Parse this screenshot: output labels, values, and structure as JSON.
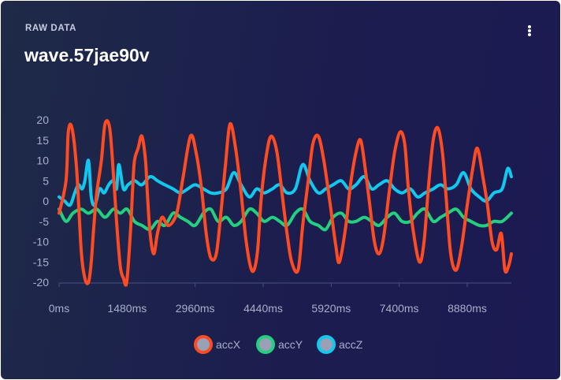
{
  "card": {
    "section_label": "RAW DATA",
    "title": "wave.57jae90v",
    "menu_icon": "vertical-dots-icon"
  },
  "chart_data": {
    "type": "line",
    "title": "",
    "xlabel": "",
    "ylabel": "",
    "x_unit": "ms",
    "xlim": [
      0,
      9840
    ],
    "ylim": [
      -20,
      20
    ],
    "x_ticks": [
      0,
      1480,
      2960,
      4440,
      5920,
      7400,
      8880
    ],
    "x_tick_labels": [
      "0ms",
      "1480ms",
      "2960ms",
      "4440ms",
      "5920ms",
      "7400ms",
      "8880ms"
    ],
    "y_ticks": [
      20,
      15,
      10,
      5,
      0,
      -5,
      -10,
      -15,
      -20
    ],
    "y_tick_labels": [
      "20",
      "15",
      "10",
      "5",
      "0",
      "-5",
      "-10",
      "-15",
      "-20"
    ],
    "grid": false,
    "legend_position": "bottom-center",
    "series": [
      {
        "name": "accX",
        "color": "#ff4b22",
        "x": [
          0,
          150,
          200,
          280,
          380,
          480,
          560,
          640,
          700,
          750,
          820,
          920,
          1000,
          1100,
          1180,
          1250,
          1330,
          1400,
          1470,
          1550,
          1600,
          1640,
          1720,
          1800,
          1880,
          1920,
          1980,
          2060,
          2140,
          2240,
          2360,
          2480,
          2580,
          2700,
          2860,
          2980,
          3100,
          3200,
          3300,
          3420,
          3520,
          3620,
          3720,
          3840,
          3960,
          4060,
          4160,
          4240,
          4320,
          4400,
          4520,
          4620,
          4740,
          4860,
          4960,
          5060,
          5200,
          5300,
          5420,
          5520,
          5640,
          5760,
          5900,
          6020,
          6100,
          6240,
          6340,
          6460,
          6560,
          6660,
          6760,
          6860,
          6960,
          7060,
          7180,
          7300,
          7420,
          7520,
          7600,
          7700,
          7840,
          7940,
          8040,
          8140,
          8240,
          8340,
          8420,
          8520,
          8640,
          8760,
          8880,
          9000,
          9100,
          9220,
          9320,
          9420,
          9520,
          9620,
          9700,
          9780,
          9840
        ],
        "values": [
          -3,
          5,
          17,
          18,
          8,
          -12,
          -19,
          -20,
          -15,
          -7,
          2,
          10,
          19,
          18,
          7,
          -5,
          -16,
          -19,
          -20,
          -8,
          3,
          10,
          13,
          16,
          10,
          2,
          -8,
          -13,
          -8,
          -4,
          -6,
          -5,
          -2,
          6,
          16,
          12,
          3,
          -8,
          -14,
          -13,
          -3,
          9,
          19,
          13,
          2,
          -9,
          -16,
          -17,
          -12,
          1,
          12,
          16,
          12,
          1,
          -8,
          -15,
          -17,
          -6,
          5,
          14,
          16,
          10,
          -1,
          -11,
          -15,
          -6,
          4,
          12,
          15,
          8,
          -1,
          -10,
          -13,
          -9,
          2,
          12,
          17,
          14,
          3,
          -7,
          -15,
          -10,
          4,
          15,
          18,
          12,
          1,
          -13,
          -17,
          -11,
          -1,
          8,
          13,
          6,
          -1,
          -10,
          -12,
          -8,
          -17,
          -16,
          -13
        ]
      },
      {
        "name": "accY",
        "color": "#22d07f",
        "x": [
          0,
          150,
          300,
          480,
          640,
          820,
          1000,
          1180,
          1330,
          1480,
          1640,
          1800,
          1980,
          2140,
          2300,
          2480,
          2640,
          2800,
          2960,
          3140,
          3300,
          3460,
          3640,
          3800,
          3960,
          4140,
          4300,
          4460,
          4640,
          4800,
          4960,
          5140,
          5300,
          5460,
          5640,
          5800,
          5960,
          6140,
          6300,
          6460,
          6640,
          6800,
          6960,
          7140,
          7300,
          7460,
          7640,
          7800,
          7960,
          8140,
          8300,
          8460,
          8640,
          8800,
          8960,
          9140,
          9300,
          9460,
          9640,
          9840
        ],
        "values": [
          -2,
          -5,
          -3,
          -2,
          -3,
          -2,
          -4,
          -2,
          -3,
          -2,
          -5,
          -6,
          -7,
          -5,
          -6,
          -3,
          -4,
          -5,
          -6,
          -3,
          -2,
          -5,
          -4,
          -6,
          -5,
          -2,
          -3,
          -5,
          -4,
          -5,
          -6,
          -3,
          -2,
          -5,
          -6,
          -7,
          -4,
          -3,
          -5,
          -5,
          -4,
          -5,
          -6,
          -4,
          -3,
          -5,
          -5,
          -3,
          -2,
          -5,
          -4,
          -3,
          -2,
          -4,
          -5,
          -6,
          -6,
          -5,
          -5,
          -3
        ]
      },
      {
        "name": "accZ",
        "color": "#11c8ef",
        "x": [
          0,
          120,
          240,
          340,
          420,
          500,
          560,
          640,
          700,
          780,
          880,
          980,
          1080,
          1180,
          1250,
          1300,
          1400,
          1500,
          1640,
          1800,
          1980,
          2140,
          2300,
          2480,
          2640,
          2800,
          2960,
          3140,
          3300,
          3460,
          3640,
          3800,
          3960,
          4140,
          4300,
          4460,
          4640,
          4800,
          4960,
          5140,
          5300,
          5460,
          5640,
          5800,
          5960,
          6140,
          6300,
          6460,
          6640,
          6800,
          6960,
          7140,
          7300,
          7460,
          7640,
          7800,
          7960,
          8140,
          8300,
          8460,
          8640,
          8800,
          8960,
          9140,
          9300,
          9460,
          9640,
          9760,
          9840
        ],
        "values": [
          1,
          0,
          -1,
          2,
          4,
          3,
          5,
          10,
          1,
          -1,
          3,
          2,
          4,
          5,
          3,
          9,
          3,
          4,
          5,
          4,
          6,
          5,
          4,
          3,
          2,
          3,
          4,
          3,
          2,
          2,
          3,
          7,
          4,
          1,
          3,
          2,
          3,
          4,
          2,
          3,
          9,
          5,
          2,
          3,
          4,
          5,
          3,
          4,
          6,
          3,
          4,
          5,
          3,
          2,
          3,
          1,
          2,
          3,
          4,
          3,
          4,
          7,
          3,
          1,
          0,
          2,
          3,
          8,
          6
        ]
      }
    ]
  }
}
